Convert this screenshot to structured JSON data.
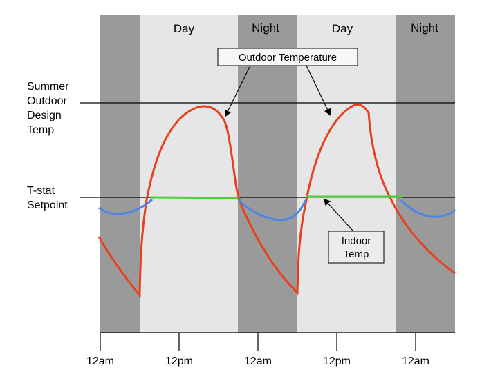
{
  "bands": [
    {
      "type": "night",
      "label": ""
    },
    {
      "type": "day",
      "label": "Day"
    },
    {
      "type": "night",
      "label": "Night"
    },
    {
      "type": "day",
      "label": "Day"
    },
    {
      "type": "night",
      "label": "Night"
    }
  ],
  "y_labels": {
    "design_temp": [
      "Summer",
      "Outdoor",
      "Design",
      "Temp"
    ],
    "setpoint": [
      "T-stat",
      "Setpoint"
    ]
  },
  "x_ticks": [
    "12am",
    "12pm",
    "12am",
    "12pm",
    "12am"
  ],
  "callouts": {
    "outdoor": "Outdoor Temperature",
    "indoor": [
      "Indoor",
      "Temp"
    ]
  },
  "colors": {
    "night": "#9a9a9a",
    "day": "#e6e6e6",
    "outdoor_line": "#e8401c",
    "indoor_cooling": "#4cd03a",
    "indoor_float": "#4a86e8"
  }
}
